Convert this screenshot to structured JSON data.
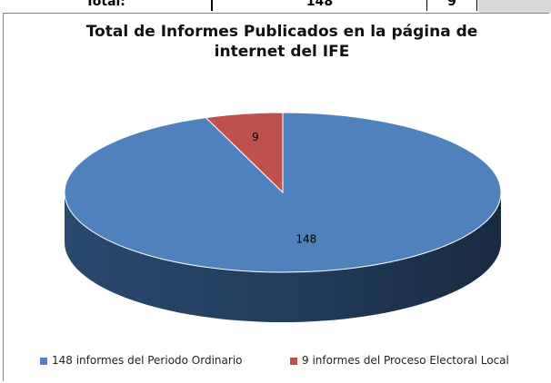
{
  "table_row": [
    "Total:",
    "148",
    "9"
  ],
  "chart_data": {
    "type": "pie",
    "title": "Total de Informes Publicados en la página de internet del IFE",
    "categories": [
      "148 informes del Periodo Ordinario",
      "9 informes del Proceso Electoral Local"
    ],
    "values": [
      148,
      9
    ],
    "colors": [
      "#4f81bd",
      "#c0504d"
    ],
    "side_colors": [
      "#2c4d75",
      "#7f2f2d"
    ],
    "legend": "bottom"
  }
}
